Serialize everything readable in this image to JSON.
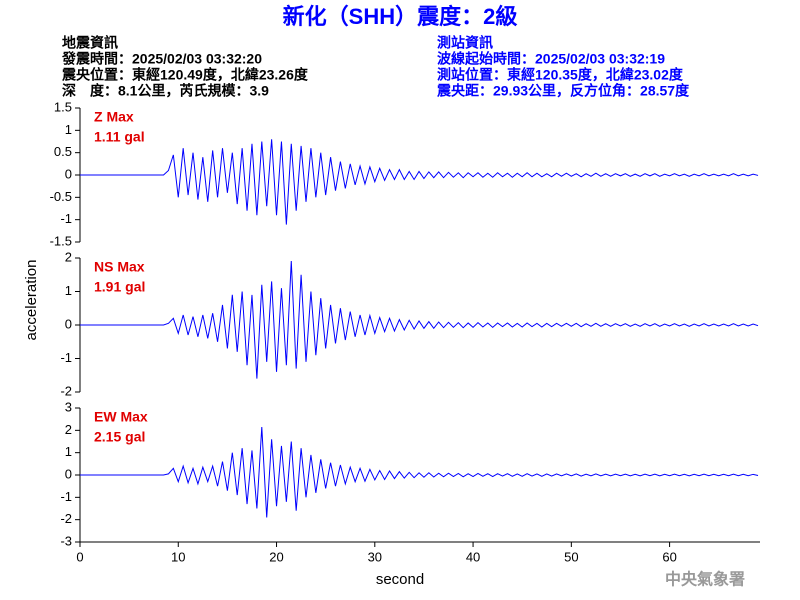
{
  "header": {
    "title": "新化（SHH）震度：2級",
    "left": [
      "地震資訊",
      "發震時間：2025/02/03 03:32:20",
      "震央位置：東經120.49度，北緯23.26度",
      "深　度：8.1公里，芮氏規模：3.9"
    ],
    "right": [
      "測站資訊",
      "波線起始時間：2025/02/03 03:32:19",
      "測站位置：東經120.35度，北緯23.02度",
      "震央距：29.93公里，反方位角：28.57度"
    ],
    "watermark": "中央氣象署"
  },
  "chart_data": [
    {
      "type": "line",
      "annotation": "Z Max",
      "max_label": "1.11 gal",
      "color": "#0000ff",
      "xlim": [
        0,
        69.2
      ],
      "ylim": [
        -1.5,
        1.5
      ],
      "yticks": [
        1.5,
        1,
        0.5,
        0,
        -0.5,
        -1,
        -1.5
      ],
      "x": [
        0,
        0.5,
        1,
        1.5,
        2,
        2.5,
        3,
        3.5,
        4,
        4.5,
        5,
        5.5,
        6,
        6.5,
        7,
        7.5,
        8,
        8.5,
        9,
        9.5,
        10,
        10.5,
        11,
        11.5,
        12,
        12.5,
        13,
        13.5,
        14,
        14.5,
        15,
        15.5,
        16,
        16.5,
        17,
        17.5,
        18,
        18.5,
        19,
        19.5,
        20,
        20.5,
        21,
        21.5,
        22,
        22.5,
        23,
        23.5,
        24,
        24.5,
        25,
        25.5,
        26,
        26.5,
        27,
        27.5,
        28,
        28.5,
        29,
        29.5,
        30,
        30.5,
        31,
        31.5,
        32,
        32.5,
        33,
        33.5,
        34,
        34.5,
        35,
        35.5,
        36,
        36.5,
        37,
        37.5,
        38,
        38.5,
        39,
        39.5,
        40,
        40.5,
        41,
        41.5,
        42,
        42.5,
        43,
        43.5,
        44,
        44.5,
        45,
        45.5,
        46,
        46.5,
        47,
        47.5,
        48,
        48.5,
        49,
        49.5,
        50,
        50.5,
        51,
        51.5,
        52,
        52.5,
        53,
        53.5,
        54,
        54.5,
        55,
        55.5,
        56,
        56.5,
        57,
        57.5,
        58,
        58.5,
        59,
        59.5,
        60,
        60.5,
        61,
        61.5,
        62,
        62.5,
        63,
        63.5,
        64,
        64.5,
        65,
        65.5,
        66,
        66.5,
        67,
        67.5,
        68,
        68.5,
        69
      ],
      "values": [
        0,
        0,
        0,
        0,
        0,
        0,
        0,
        0,
        0,
        0,
        0,
        0,
        0,
        0,
        0,
        0,
        0,
        0,
        0.1,
        0.45,
        -0.5,
        0.6,
        -0.45,
        0.5,
        -0.55,
        0.4,
        -0.6,
        0.55,
        -0.5,
        0.6,
        -0.4,
        0.5,
        -0.65,
        0.6,
        -0.8,
        0.7,
        -0.9,
        0.75,
        -0.7,
        0.8,
        -0.9,
        0.75,
        -1.11,
        0.7,
        -0.8,
        0.65,
        -0.6,
        0.6,
        -0.5,
        0.5,
        -0.45,
        0.4,
        -0.35,
        0.3,
        -0.3,
        0.25,
        -0.22,
        0.2,
        -0.2,
        0.18,
        -0.15,
        0.15,
        -0.12,
        0.12,
        -0.1,
        0.12,
        -0.1,
        0.08,
        -0.1,
        0.08,
        -0.08,
        0.07,
        -0.06,
        0.07,
        -0.06,
        0.06,
        -0.05,
        0.05,
        -0.06,
        0.05,
        -0.04,
        0.05,
        -0.05,
        0.04,
        -0.05,
        0.05,
        -0.04,
        0.04,
        -0.05,
        0.04,
        -0.04,
        0.05,
        -0.04,
        0.04,
        -0.04,
        0.03,
        -0.04,
        0.04,
        -0.03,
        0.04,
        -0.03,
        0.03,
        -0.04,
        0.03,
        -0.03,
        0.04,
        -0.03,
        0.03,
        -0.03,
        0.03,
        -0.02,
        0.03,
        -0.03,
        0.02,
        -0.03,
        0.03,
        -0.02,
        0.03,
        -0.03,
        0.02,
        -0.02,
        0.03,
        -0.02,
        0.02,
        -0.03,
        0.02,
        -0.02,
        0.03,
        -0.02,
        0.02,
        -0.02,
        0.02,
        -0.02,
        0.03,
        -0.02,
        0.02,
        -0.02,
        0.02,
        -0.01
      ]
    },
    {
      "type": "line",
      "annotation": "NS Max",
      "max_label": "1.91 gal",
      "ylabel": "acceleration",
      "color": "#0000ff",
      "xlim": [
        0,
        69.2
      ],
      "ylim": [
        -2,
        2
      ],
      "yticks": [
        2,
        1,
        0,
        -1,
        -2
      ],
      "x": [
        0,
        0.5,
        1,
        1.5,
        2,
        2.5,
        3,
        3.5,
        4,
        4.5,
        5,
        5.5,
        6,
        6.5,
        7,
        7.5,
        8,
        8.5,
        9,
        9.5,
        10,
        10.5,
        11,
        11.5,
        12,
        12.5,
        13,
        13.5,
        14,
        14.5,
        15,
        15.5,
        16,
        16.5,
        17,
        17.5,
        18,
        18.5,
        19,
        19.5,
        20,
        20.5,
        21,
        21.5,
        22,
        22.5,
        23,
        23.5,
        24,
        24.5,
        25,
        25.5,
        26,
        26.5,
        27,
        27.5,
        28,
        28.5,
        29,
        29.5,
        30,
        30.5,
        31,
        31.5,
        32,
        32.5,
        33,
        33.5,
        34,
        34.5,
        35,
        35.5,
        36,
        36.5,
        37,
        37.5,
        38,
        38.5,
        39,
        39.5,
        40,
        40.5,
        41,
        41.5,
        42,
        42.5,
        43,
        43.5,
        44,
        44.5,
        45,
        45.5,
        46,
        46.5,
        47,
        47.5,
        48,
        48.5,
        49,
        49.5,
        50,
        50.5,
        51,
        51.5,
        52,
        52.5,
        53,
        53.5,
        54,
        54.5,
        55,
        55.5,
        56,
        56.5,
        57,
        57.5,
        58,
        58.5,
        59,
        59.5,
        60,
        60.5,
        61,
        61.5,
        62,
        62.5,
        63,
        63.5,
        64,
        64.5,
        65,
        65.5,
        66,
        66.5,
        67,
        67.5,
        68,
        68.5,
        69
      ],
      "values": [
        0,
        0,
        0,
        0,
        0,
        0,
        0,
        0,
        0,
        0,
        0,
        0,
        0,
        0,
        0,
        0,
        0,
        0,
        0.05,
        0.2,
        -0.25,
        0.3,
        -0.3,
        0.25,
        -0.35,
        0.3,
        -0.4,
        0.35,
        -0.5,
        0.6,
        -0.7,
        0.9,
        -0.8,
        1.0,
        -1.2,
        0.9,
        -1.6,
        1.2,
        -1.1,
        1.3,
        -1.4,
        1.1,
        -1.2,
        1.91,
        -1.3,
        1.5,
        -1.1,
        1.0,
        -0.9,
        0.8,
        -0.7,
        0.6,
        -0.55,
        0.5,
        -0.45,
        0.4,
        -0.35,
        0.3,
        -0.3,
        0.28,
        -0.25,
        0.22,
        -0.2,
        0.2,
        -0.18,
        0.16,
        -0.15,
        0.14,
        -0.12,
        0.12,
        -0.1,
        0.1,
        -0.1,
        0.09,
        -0.08,
        0.08,
        -0.07,
        0.07,
        -0.08,
        0.06,
        -0.07,
        0.07,
        -0.06,
        0.06,
        -0.07,
        0.06,
        -0.05,
        0.06,
        -0.06,
        0.05,
        -0.06,
        0.06,
        -0.05,
        0.05,
        -0.06,
        0.05,
        -0.05,
        0.05,
        -0.04,
        0.05,
        -0.04,
        0.05,
        -0.05,
        0.04,
        -0.04,
        0.05,
        -0.04,
        0.04,
        -0.04,
        0.04,
        -0.03,
        0.04,
        -0.04,
        0.03,
        -0.04,
        0.04,
        -0.03,
        0.04,
        -0.04,
        0.03,
        -0.03,
        0.04,
        -0.03,
        0.03,
        -0.04,
        0.03,
        -0.03,
        0.04,
        -0.03,
        0.03,
        -0.03,
        0.03,
        -0.03,
        0.04,
        -0.03,
        0.03,
        -0.03,
        0.03,
        -0.02
      ]
    },
    {
      "type": "line",
      "annotation": "EW Max",
      "max_label": "2.15 gal",
      "xlabel": "second",
      "color": "#0000ff",
      "xlim": [
        0,
        69.2
      ],
      "ylim": [
        -3,
        3
      ],
      "yticks": [
        3,
        2,
        1,
        0,
        -1,
        -2,
        -3
      ],
      "xticks": [
        0,
        10,
        20,
        30,
        40,
        50,
        60
      ],
      "x": [
        0,
        0.5,
        1,
        1.5,
        2,
        2.5,
        3,
        3.5,
        4,
        4.5,
        5,
        5.5,
        6,
        6.5,
        7,
        7.5,
        8,
        8.5,
        9,
        9.5,
        10,
        10.5,
        11,
        11.5,
        12,
        12.5,
        13,
        13.5,
        14,
        14.5,
        15,
        15.5,
        16,
        16.5,
        17,
        17.5,
        18,
        18.5,
        19,
        19.5,
        20,
        20.5,
        21,
        21.5,
        22,
        22.5,
        23,
        23.5,
        24,
        24.5,
        25,
        25.5,
        26,
        26.5,
        27,
        27.5,
        28,
        28.5,
        29,
        29.5,
        30,
        30.5,
        31,
        31.5,
        32,
        32.5,
        33,
        33.5,
        34,
        34.5,
        35,
        35.5,
        36,
        36.5,
        37,
        37.5,
        38,
        38.5,
        39,
        39.5,
        40,
        40.5,
        41,
        41.5,
        42,
        42.5,
        43,
        43.5,
        44,
        44.5,
        45,
        45.5,
        46,
        46.5,
        47,
        47.5,
        48,
        48.5,
        49,
        49.5,
        50,
        50.5,
        51,
        51.5,
        52,
        52.5,
        53,
        53.5,
        54,
        54.5,
        55,
        55.5,
        56,
        56.5,
        57,
        57.5,
        58,
        58.5,
        59,
        59.5,
        60,
        60.5,
        61,
        61.5,
        62,
        62.5,
        63,
        63.5,
        64,
        64.5,
        65,
        65.5,
        66,
        66.5,
        67,
        67.5,
        68,
        68.5,
        69
      ],
      "values": [
        0,
        0,
        0,
        0,
        0,
        0,
        0,
        0,
        0,
        0,
        0,
        0,
        0,
        0,
        0,
        0,
        0,
        0,
        0.05,
        0.3,
        -0.3,
        0.4,
        -0.35,
        0.3,
        -0.4,
        0.35,
        -0.3,
        0.4,
        -0.5,
        0.6,
        -0.7,
        1.0,
        -0.9,
        1.2,
        -1.3,
        1.1,
        -1.5,
        2.15,
        -1.9,
        1.6,
        -1.4,
        1.3,
        -1.2,
        1.5,
        -1.6,
        1.2,
        -1.0,
        0.9,
        -0.8,
        0.7,
        -0.6,
        0.55,
        -0.5,
        0.45,
        -0.4,
        0.35,
        -0.3,
        0.3,
        -0.28,
        0.25,
        -0.22,
        0.2,
        -0.2,
        0.18,
        -0.16,
        0.15,
        -0.14,
        0.12,
        -0.12,
        0.1,
        -0.1,
        0.1,
        -0.09,
        0.08,
        -0.08,
        0.08,
        -0.07,
        0.07,
        -0.08,
        0.06,
        -0.07,
        0.07,
        -0.06,
        0.06,
        -0.07,
        0.06,
        -0.05,
        0.06,
        -0.06,
        0.05,
        -0.06,
        0.06,
        -0.05,
        0.05,
        -0.06,
        0.05,
        -0.05,
        0.05,
        -0.04,
        0.05,
        -0.04,
        0.05,
        -0.05,
        0.04,
        -0.04,
        0.05,
        -0.04,
        0.04,
        -0.04,
        0.04,
        -0.03,
        0.04,
        -0.04,
        0.03,
        -0.04,
        0.04,
        -0.03,
        0.04,
        -0.04,
        0.03,
        -0.03,
        0.04,
        -0.03,
        0.03,
        -0.04,
        0.03,
        -0.03,
        0.04,
        -0.03,
        0.03,
        -0.03,
        0.03,
        -0.03,
        0.04,
        -0.03,
        0.03,
        -0.03,
        0.03,
        -0.02
      ]
    }
  ]
}
